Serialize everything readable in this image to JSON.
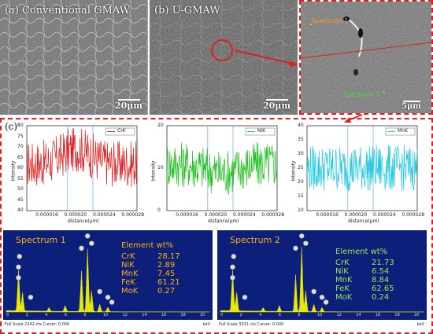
{
  "panels": {
    "a_label": "(a) Conventional GMAW",
    "b_label": "(b) U-GMAW",
    "c_label": "(c)",
    "a_scale": "20μm",
    "b_scale": "20μm",
    "zoom_scale": "5μm",
    "spectrum1_label": "Spectrum 1",
    "spectrum2_label": "Spectrum 2"
  },
  "line_scans": [
    {
      "legend": "CrK",
      "color": "#e02020",
      "ylabel": "Intensity",
      "xlabel": "distance(μm)",
      "yticks": [
        "80",
        "75",
        "70",
        "65",
        "60",
        "55",
        "50",
        "45",
        "40"
      ],
      "xticks": [
        "0.000016",
        "0.000020",
        "0.000024",
        "0.000028"
      ]
    },
    {
      "legend": "NiK",
      "color": "#20c020",
      "ylabel": "Intensity",
      "xlabel": "distance(μm)",
      "yticks": [
        "20",
        "10",
        "0"
      ],
      "xticks": [
        "0.000016",
        "0.000020",
        "0.000024",
        "0.000028"
      ]
    },
    {
      "legend": "MnK",
      "color": "#20c8e0",
      "ylabel": "Intensity",
      "xlabel": "distance(μm)",
      "yticks": [
        "40",
        "35",
        "30",
        "25",
        "20",
        "15",
        "10"
      ],
      "xticks": [
        "0.000016",
        "0.000020",
        "0.000024",
        "0.000028"
      ]
    }
  ],
  "eds": [
    {
      "title": "Spectrum 1",
      "header": "Element wt%",
      "rows": [
        [
          "CrK",
          "28.17"
        ],
        [
          "NiK",
          "2.89"
        ],
        [
          "MnK",
          "7.45"
        ],
        [
          "FeK",
          "61.21"
        ],
        [
          "MoK",
          "0.27"
        ]
      ],
      "footer": "Full Scale 2242 cts Cursor: 0.000",
      "unit": "keV",
      "xticks": [
        "0",
        "2",
        "4",
        "6",
        "8",
        "10",
        "12",
        "14",
        "16",
        "18",
        "20"
      ]
    },
    {
      "title": "Spectrum 2",
      "header": "Element wt%",
      "rows": [
        [
          "CrK",
          "21.73"
        ],
        [
          "NiK",
          "6.54"
        ],
        [
          "MnK",
          "8.84"
        ],
        [
          "FeK",
          "62.65"
        ],
        [
          "MoK",
          "0.24"
        ]
      ],
      "footer": "Full Scale 3331 cts Cursor: 0.000",
      "unit": "keV",
      "xticks": [
        "0",
        "2",
        "4",
        "6",
        "8",
        "10",
        "12",
        "14",
        "16",
        "18",
        "20"
      ]
    }
  ],
  "colors": {
    "annotation": "#e02020",
    "eds_bg": "#0c1f7a",
    "eds_peak": "#e8e800"
  }
}
